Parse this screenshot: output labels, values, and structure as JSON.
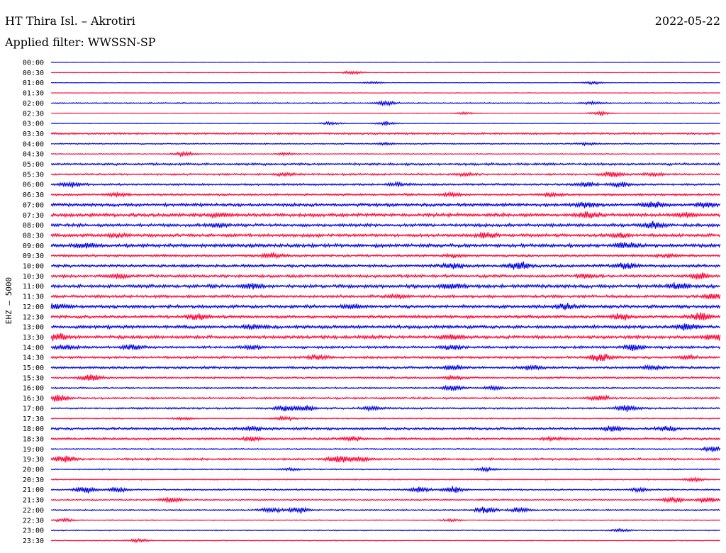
{
  "header": {
    "title": "HT Thira Isl. – Akrotiri",
    "date": "2022-05-22",
    "filter": "Applied filter: WWSSN-SP"
  },
  "chart_data": {
    "type": "line",
    "title": "HT Thira Isl. – Akrotiri",
    "ylabel": "EHZ – 5000",
    "xlabel": "",
    "colors": [
      "#0000dd",
      "#ff0033"
    ],
    "rows": [
      {
        "label": "00:00",
        "noise": 0.3,
        "events": []
      },
      {
        "label": "00:30",
        "noise": 0.4,
        "events": [
          [
            0.45,
            2
          ]
        ]
      },
      {
        "label": "01:00",
        "noise": 0.3,
        "events": [
          [
            0.48,
            1.5
          ],
          [
            0.81,
            2
          ]
        ]
      },
      {
        "label": "01:30",
        "noise": 0.3,
        "events": []
      },
      {
        "label": "02:00",
        "noise": 0.8,
        "events": [
          [
            0.5,
            2.5
          ],
          [
            0.81,
            1.5
          ]
        ]
      },
      {
        "label": "02:30",
        "noise": 0.4,
        "events": [
          [
            0.82,
            2.5
          ],
          [
            0.62,
            1.5
          ]
        ]
      },
      {
        "label": "03:00",
        "noise": 0.4,
        "events": [
          [
            0.42,
            2
          ],
          [
            0.5,
            2.5
          ]
        ]
      },
      {
        "label": "03:30",
        "noise": 1.2,
        "events": []
      },
      {
        "label": "04:00",
        "noise": 0.8,
        "events": [
          [
            0.5,
            1.5
          ],
          [
            0.8,
            1.5
          ]
        ]
      },
      {
        "label": "04:30",
        "noise": 0.6,
        "events": [
          [
            0.2,
            3
          ],
          [
            0.35,
            1.5
          ]
        ]
      },
      {
        "label": "05:00",
        "noise": 1.5,
        "events": []
      },
      {
        "label": "05:30",
        "noise": 1.2,
        "events": [
          [
            0.35,
            2
          ],
          [
            0.62,
            2
          ],
          [
            0.84,
            3.5
          ],
          [
            0.9,
            2
          ]
        ]
      },
      {
        "label": "06:00",
        "noise": 1.3,
        "events": [
          [
            0.03,
            3
          ],
          [
            0.52,
            2
          ],
          [
            0.8,
            3
          ],
          [
            0.85,
            2.5
          ]
        ]
      },
      {
        "label": "06:30",
        "noise": 1.4,
        "events": [
          [
            0.1,
            2
          ],
          [
            0.6,
            2
          ],
          [
            0.75,
            2
          ]
        ]
      },
      {
        "label": "07:00",
        "noise": 2.0,
        "events": [
          [
            0.8,
            3
          ],
          [
            0.9,
            3.5
          ],
          [
            0.98,
            3
          ]
        ]
      },
      {
        "label": "07:30",
        "noise": 2.2,
        "events": [
          [
            0.25,
            2
          ],
          [
            0.8,
            3.5
          ],
          [
            0.95,
            2.5
          ]
        ]
      },
      {
        "label": "08:00",
        "noise": 2.0,
        "events": [
          [
            0.25,
            2.5
          ],
          [
            0.9,
            3.5
          ]
        ]
      },
      {
        "label": "08:30",
        "noise": 2.0,
        "events": [
          [
            0.1,
            2
          ],
          [
            0.65,
            3
          ],
          [
            0.85,
            2.5
          ]
        ]
      },
      {
        "label": "09:00",
        "noise": 2.2,
        "events": [
          [
            0.05,
            3
          ],
          [
            0.86,
            3.5
          ]
        ]
      },
      {
        "label": "09:30",
        "noise": 1.5,
        "events": [
          [
            0.33,
            3.5
          ],
          [
            0.6,
            2
          ],
          [
            0.92,
            2
          ]
        ]
      },
      {
        "label": "10:00",
        "noise": 1.8,
        "events": [
          [
            0.6,
            3
          ],
          [
            0.7,
            5
          ],
          [
            0.86,
            4
          ]
        ]
      },
      {
        "label": "10:30",
        "noise": 1.8,
        "events": [
          [
            0.1,
            2.5
          ],
          [
            0.8,
            2.5
          ],
          [
            0.97,
            3.5
          ]
        ]
      },
      {
        "label": "11:00",
        "noise": 2.2,
        "events": [
          [
            0.3,
            3
          ],
          [
            0.6,
            3
          ],
          [
            0.94,
            3.5
          ]
        ]
      },
      {
        "label": "11:30",
        "noise": 1.8,
        "events": [
          [
            0.52,
            2
          ],
          [
            0.99,
            3.5
          ]
        ]
      },
      {
        "label": "12:00",
        "noise": 2.0,
        "events": [
          [
            0.01,
            4
          ],
          [
            0.45,
            3
          ],
          [
            0.77,
            3
          ]
        ]
      },
      {
        "label": "12:30",
        "noise": 1.8,
        "events": [
          [
            0.22,
            3.5
          ],
          [
            0.85,
            3.5
          ],
          [
            0.97,
            5
          ]
        ]
      },
      {
        "label": "13:00",
        "noise": 2.0,
        "events": [
          [
            0.3,
            3
          ],
          [
            0.95,
            3.5
          ]
        ]
      },
      {
        "label": "13:30",
        "noise": 2.0,
        "events": [
          [
            0.01,
            4
          ],
          [
            0.6,
            3
          ],
          [
            0.99,
            4
          ]
        ]
      },
      {
        "label": "14:00",
        "noise": 1.6,
        "events": [
          [
            0.02,
            3
          ],
          [
            0.12,
            3.5
          ],
          [
            0.3,
            2.5
          ],
          [
            0.6,
            3
          ],
          [
            0.87,
            4.5
          ]
        ]
      },
      {
        "label": "14:30",
        "noise": 1.5,
        "events": [
          [
            0.4,
            2.5
          ],
          [
            0.82,
            5
          ],
          [
            0.95,
            2
          ]
        ]
      },
      {
        "label": "15:00",
        "noise": 1.5,
        "events": [
          [
            0.6,
            3
          ],
          [
            0.72,
            3
          ],
          [
            0.9,
            2.5
          ]
        ]
      },
      {
        "label": "15:30",
        "noise": 1.2,
        "events": [
          [
            0.06,
            4
          ],
          [
            0.6,
            2
          ]
        ]
      },
      {
        "label": "16:00",
        "noise": 1.0,
        "events": [
          [
            0.6,
            3.5
          ],
          [
            0.66,
            2.5
          ]
        ]
      },
      {
        "label": "16:30",
        "noise": 1.3,
        "events": [
          [
            0.01,
            4
          ],
          [
            0.82,
            3
          ]
        ]
      },
      {
        "label": "17:00",
        "noise": 1.2,
        "events": [
          [
            0.35,
            3.5
          ],
          [
            0.38,
            3.5
          ],
          [
            0.48,
            2.5
          ],
          [
            0.86,
            4.5
          ]
        ]
      },
      {
        "label": "17:30",
        "noise": 0.8,
        "events": [
          [
            0.35,
            2.5
          ],
          [
            0.2,
            1.5
          ]
        ]
      },
      {
        "label": "18:00",
        "noise": 1.6,
        "events": [
          [
            0.3,
            2.5
          ],
          [
            0.84,
            3.5
          ],
          [
            0.92,
            2.5
          ]
        ]
      },
      {
        "label": "18:30",
        "noise": 1.4,
        "events": [
          [
            0.3,
            2.5
          ],
          [
            0.45,
            2.5
          ],
          [
            0.75,
            2
          ]
        ]
      },
      {
        "label": "19:00",
        "noise": 0.8,
        "events": [
          [
            0.99,
            3.5
          ]
        ]
      },
      {
        "label": "19:30",
        "noise": 1.4,
        "events": [
          [
            0.02,
            4
          ],
          [
            0.43,
            4.5
          ],
          [
            0.46,
            3
          ]
        ]
      },
      {
        "label": "20:00",
        "noise": 0.8,
        "events": [
          [
            0.65,
            2.5
          ],
          [
            0.36,
            1.5
          ]
        ]
      },
      {
        "label": "20:30",
        "noise": 0.8,
        "events": [
          [
            0.96,
            2.5
          ]
        ]
      },
      {
        "label": "21:00",
        "noise": 1.0,
        "events": [
          [
            0.05,
            4.5
          ],
          [
            0.1,
            3
          ],
          [
            0.55,
            3.5
          ],
          [
            0.6,
            4
          ],
          [
            0.88,
            2
          ]
        ]
      },
      {
        "label": "21:30",
        "noise": 1.0,
        "events": [
          [
            0.18,
            3
          ],
          [
            0.93,
            3.5
          ],
          [
            0.98,
            3
          ]
        ]
      },
      {
        "label": "22:00",
        "noise": 1.0,
        "events": [
          [
            0.33,
            3.5
          ],
          [
            0.37,
            3.5
          ],
          [
            0.65,
            4
          ],
          [
            0.7,
            3
          ]
        ]
      },
      {
        "label": "22:30",
        "noise": 0.6,
        "events": [
          [
            0.02,
            2
          ],
          [
            0.6,
            1.5
          ]
        ]
      },
      {
        "label": "23:00",
        "noise": 0.6,
        "events": [
          [
            0.85,
            2
          ]
        ]
      },
      {
        "label": "23:30",
        "noise": 0.6,
        "events": [
          [
            0.13,
            2
          ]
        ]
      }
    ]
  }
}
